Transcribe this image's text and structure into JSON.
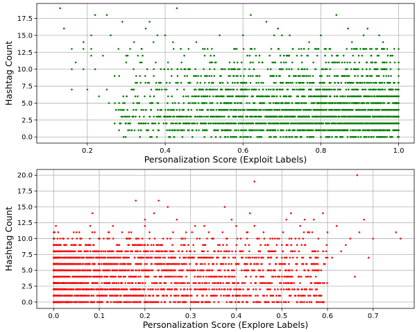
{
  "chart_data": [
    {
      "type": "scatter",
      "title": "",
      "xlabel": "Personalization Score (Exploit Labels)",
      "ylabel": "Hashtag Count",
      "xlim": [
        0.07,
        1.04
      ],
      "ylim": [
        -0.9,
        19.7
      ],
      "xticks": [
        0.2,
        0.4,
        0.6,
        0.8,
        1.0
      ],
      "xtick_labels": [
        "0.2",
        "0.4",
        "0.6",
        "0.8",
        "1.0"
      ],
      "yticks": [
        0.0,
        2.5,
        5.0,
        7.5,
        10.0,
        12.5,
        15.0,
        17.5
      ],
      "ytick_labels": [
        "0.0",
        "2.5",
        "5.0",
        "7.5",
        "10.0",
        "12.5",
        "15.0",
        "17.5"
      ],
      "grid": true,
      "color": "#008000",
      "series": [
        {
          "values_description_free": true,
          "points": [
            [
              0.13,
              19
            ],
            [
              0.14,
              16
            ],
            [
              0.16,
              13
            ],
            [
              0.16,
              7
            ],
            [
              0.16,
              10
            ],
            [
              0.17,
              11
            ],
            [
              0.19,
              13
            ],
            [
              0.19,
              10
            ],
            [
              0.19,
              14
            ],
            [
              0.2,
              7
            ],
            [
              0.21,
              13
            ],
            [
              0.21,
              12
            ],
            [
              0.21,
              15
            ],
            [
              0.22,
              18
            ],
            [
              0.22,
              10
            ],
            [
              0.23,
              6
            ],
            [
              0.24,
              12
            ],
            [
              0.25,
              18
            ],
            [
              0.25,
              7
            ],
            [
              0.26,
              15
            ],
            [
              0.27,
              9
            ],
            [
              0.28,
              4
            ],
            [
              0.28,
              13
            ],
            [
              0.29,
              17
            ],
            [
              0.29,
              4
            ],
            [
              0.3,
              11
            ],
            [
              0.31,
              13
            ],
            [
              0.32,
              14
            ],
            [
              0.33,
              12
            ],
            [
              0.34,
              13
            ],
            [
              0.35,
              16
            ],
            [
              0.35,
              2
            ],
            [
              0.36,
              17
            ],
            [
              0.36,
              3
            ],
            [
              0.37,
              14
            ],
            [
              0.37,
              2
            ],
            [
              0.38,
              5
            ],
            [
              0.38,
              15
            ],
            [
              0.4,
              15
            ],
            [
              0.4,
              3
            ],
            [
              0.42,
              14
            ],
            [
              0.43,
              19
            ],
            [
              0.43,
              2
            ],
            [
              0.44,
              1
            ],
            [
              0.44,
              13
            ],
            [
              0.46,
              13
            ],
            [
              0.48,
              14
            ],
            [
              0.5,
              1
            ],
            [
              0.52,
              13
            ],
            [
              0.53,
              0
            ],
            [
              0.54,
              15
            ],
            [
              0.56,
              1
            ],
            [
              0.58,
              13
            ],
            [
              0.6,
              15
            ],
            [
              0.61,
              0
            ],
            [
              0.62,
              18
            ],
            [
              0.63,
              13
            ],
            [
              0.66,
              17
            ],
            [
              0.67,
              1
            ],
            [
              0.68,
              15
            ],
            [
              0.69,
              16
            ],
            [
              0.7,
              15
            ],
            [
              0.71,
              0
            ],
            [
              0.72,
              15
            ],
            [
              0.73,
              1
            ],
            [
              0.75,
              13
            ],
            [
              0.77,
              14
            ],
            [
              0.79,
              1
            ],
            [
              0.8,
              15
            ],
            [
              0.82,
              0
            ],
            [
              0.84,
              18
            ],
            [
              0.85,
              1
            ],
            [
              0.87,
              16
            ],
            [
              0.88,
              14
            ],
            [
              0.9,
              1
            ],
            [
              0.91,
              15
            ],
            [
              0.92,
              16
            ],
            [
              0.93,
              12
            ],
            [
              0.95,
              15
            ],
            [
              0.96,
              14
            ],
            [
              0.98,
              12
            ],
            [
              0.99,
              11
            ],
            [
              1.0,
              0
            ]
          ]
        }
      ]
    },
    {
      "type": "scatter",
      "title": "",
      "xlabel": "Personalization Score (Explore Labels)",
      "ylabel": "Hashtag Count",
      "xlim": [
        -0.037,
        0.79
      ],
      "ylim": [
        -1.0,
        20.9
      ],
      "xticks": [
        0.0,
        0.1,
        0.2,
        0.3,
        0.4,
        0.5,
        0.6,
        0.7
      ],
      "xtick_labels": [
        "0.0",
        "0.1",
        "0.2",
        "0.3",
        "0.4",
        "0.5",
        "0.6",
        "0.7"
      ],
      "yticks": [
        0.0,
        2.5,
        5.0,
        7.5,
        10.0,
        12.5,
        15.0,
        17.5,
        20.0
      ],
      "ytick_labels": [
        "0.0",
        "2.5",
        "5.0",
        "7.5",
        "10.0",
        "12.5",
        "15.0",
        "17.5",
        "20.0"
      ],
      "grid": true,
      "color": "#ff0000",
      "series": [
        {
          "points": [
            [
              0.005,
              12
            ],
            [
              0.01,
              11
            ],
            [
              0.02,
              10
            ],
            [
              0.03,
              8
            ],
            [
              0.04,
              9
            ],
            [
              0.05,
              11
            ],
            [
              0.06,
              10
            ],
            [
              0.07,
              9
            ],
            [
              0.08,
              12
            ],
            [
              0.085,
              14
            ],
            [
              0.09,
              11
            ],
            [
              0.1,
              10
            ],
            [
              0.12,
              11
            ],
            [
              0.13,
              12
            ],
            [
              0.14,
              9
            ],
            [
              0.15,
              11
            ],
            [
              0.16,
              10
            ],
            [
              0.17,
              11
            ],
            [
              0.18,
              16
            ],
            [
              0.19,
              8
            ],
            [
              0.2,
              13
            ],
            [
              0.2,
              12
            ],
            [
              0.21,
              10
            ],
            [
              0.22,
              14
            ],
            [
              0.23,
              16
            ],
            [
              0.24,
              10
            ],
            [
              0.25,
              15
            ],
            [
              0.26,
              9
            ],
            [
              0.27,
              13
            ],
            [
              0.28,
              10
            ],
            [
              0.29,
              11
            ],
            [
              0.3,
              8
            ],
            [
              0.31,
              12
            ],
            [
              0.32,
              10
            ],
            [
              0.33,
              12
            ],
            [
              0.34,
              11
            ],
            [
              0.35,
              10
            ],
            [
              0.36,
              9
            ],
            [
              0.37,
              11
            ],
            [
              0.375,
              15
            ],
            [
              0.38,
              10
            ],
            [
              0.39,
              13
            ],
            [
              0.4,
              12
            ],
            [
              0.41,
              10
            ],
            [
              0.415,
              0
            ],
            [
              0.42,
              9
            ],
            [
              0.43,
              14
            ],
            [
              0.44,
              19
            ],
            [
              0.44,
              12
            ],
            [
              0.45,
              10
            ],
            [
              0.46,
              11
            ],
            [
              0.47,
              9
            ],
            [
              0.48,
              8
            ],
            [
              0.49,
              10
            ],
            [
              0.5,
              9
            ],
            [
              0.51,
              13
            ],
            [
              0.52,
              14
            ],
            [
              0.53,
              10
            ],
            [
              0.54,
              12
            ],
            [
              0.55,
              13
            ],
            [
              0.56,
              11
            ],
            [
              0.57,
              13
            ],
            [
              0.58,
              10
            ],
            [
              0.59,
              14
            ],
            [
              0.6,
              11
            ],
            [
              0.61,
              7
            ],
            [
              0.62,
              12
            ],
            [
              0.63,
              8
            ],
            [
              0.64,
              9
            ],
            [
              0.65,
              10
            ],
            [
              0.66,
              4
            ],
            [
              0.665,
              20
            ],
            [
              0.67,
              11
            ],
            [
              0.68,
              13
            ],
            [
              0.69,
              7
            ],
            [
              0.7,
              10
            ],
            [
              0.75,
              11
            ],
            [
              0.76,
              10
            ]
          ]
        }
      ]
    }
  ]
}
